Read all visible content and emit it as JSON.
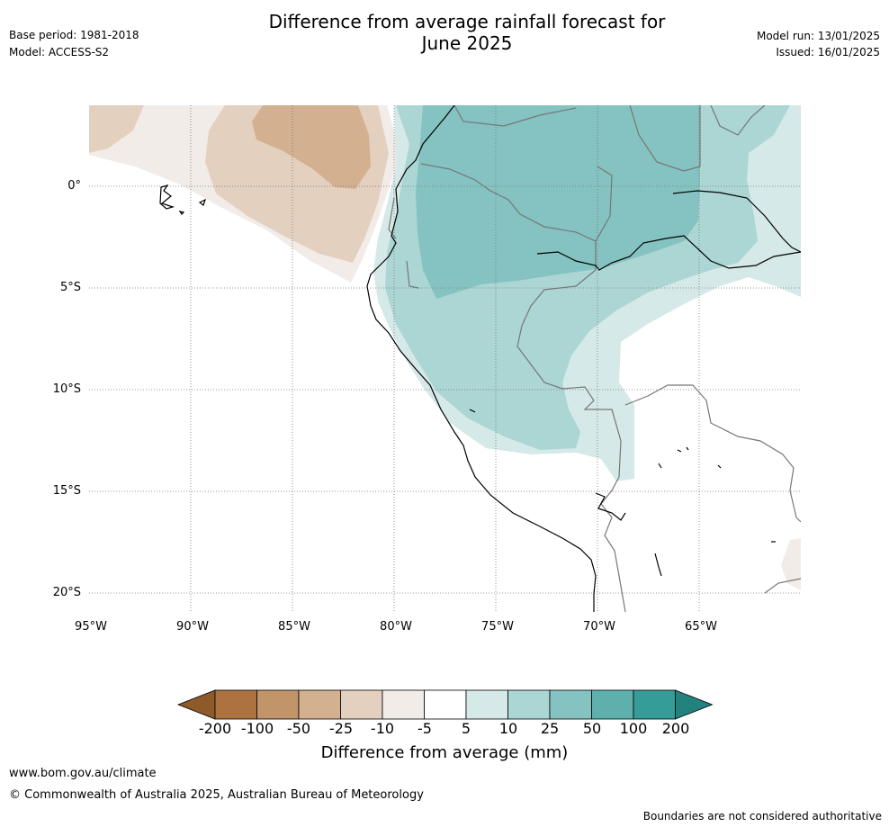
{
  "header": {
    "base_period": "Base period: 1981-2018",
    "model": "Model: ACCESS-S2",
    "title_line1": "Difference from average rainfall forecast for",
    "title_line2": "June 2025",
    "model_run": "Model run: 13/01/2025",
    "issued": "Issued: 16/01/2025"
  },
  "map": {
    "lat_labels": [
      "0°",
      "5°S",
      "10°S",
      "15°S",
      "20°S"
    ],
    "lon_labels": [
      "95°W",
      "90°W",
      "85°W",
      "80°W",
      "75°W",
      "70°W",
      "65°W"
    ]
  },
  "legend": {
    "ticks": [
      "-200",
      "-100",
      "-50",
      "-25",
      "-10",
      "-5",
      "5",
      "10",
      "25",
      "50",
      "100",
      "200"
    ],
    "colors": [
      "#8f5a2a",
      "#ac7340",
      "#c2946a",
      "#d2b090",
      "#e3d0bf",
      "#f1ece8",
      "#ffffff",
      "#d5e9e8",
      "#abd6d4",
      "#84c3c1",
      "#5eb0ad",
      "#359d98",
      "#22827d"
    ],
    "label": "Difference from average (mm)"
  },
  "footer": {
    "website": "www.bom.gov.au/climate",
    "copyright": "© Commonwealth of Australia 2025, Australian Bureau of Meteorology",
    "disclaimer": "Boundaries are not considered authoritative"
  }
}
